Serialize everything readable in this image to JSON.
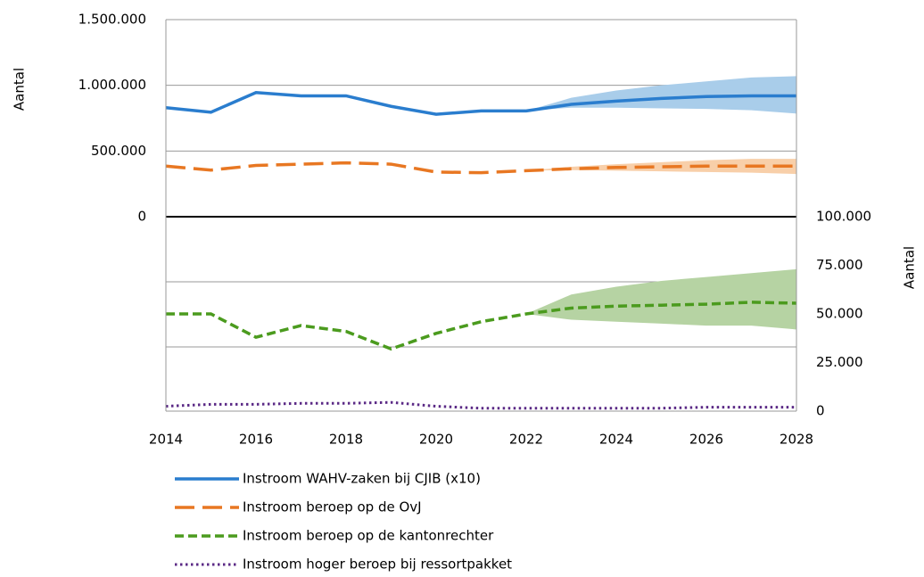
{
  "chart_data": [
    {
      "type": "line",
      "y_label": "Aantal",
      "x": [
        2014,
        2015,
        2016,
        2017,
        2018,
        2019,
        2020,
        2021,
        2022,
        2023,
        2024,
        2025,
        2026,
        2027,
        2028
      ],
      "xlim": [
        2014,
        2028
      ],
      "ylim": [
        0,
        1500000
      ],
      "yticks": [
        0,
        {
          "value": 500000,
          "label": "500.000"
        },
        {
          "value": 1000000,
          "label": "1.000.000"
        },
        {
          "value": 1500000,
          "label": "1.500.000"
        }
      ],
      "grid": true,
      "series": [
        {
          "name": "Instroom WAHV-zaken bij CJIB (x10)",
          "color": "#2a7dce",
          "dash": "solid",
          "band_color": "#a9cdea",
          "values": [
            830000,
            795000,
            945000,
            920000,
            920000,
            840000,
            780000,
            805000,
            805000,
            855000,
            880000,
            900000,
            915000,
            920000,
            920000
          ],
          "band": {
            "lower": [
              null,
              null,
              null,
              null,
              null,
              null,
              null,
              null,
              805000,
              830000,
              830000,
              825000,
              820000,
              810000,
              785000
            ],
            "upper": [
              null,
              null,
              null,
              null,
              null,
              null,
              null,
              null,
              805000,
              905000,
              960000,
              1000000,
              1030000,
              1060000,
              1070000
            ]
          }
        },
        {
          "name": "Instroom beroep op de OvJ",
          "color": "#e87722",
          "dash": "long-dash",
          "band_color": "#f8cfa9",
          "values": [
            385000,
            355000,
            390000,
            400000,
            410000,
            400000,
            340000,
            335000,
            350000,
            365000,
            375000,
            380000,
            385000,
            385000,
            385000
          ],
          "band": {
            "lower": [
              null,
              null,
              null,
              null,
              null,
              null,
              null,
              null,
              350000,
              355000,
              350000,
              345000,
              340000,
              335000,
              325000
            ],
            "upper": [
              null,
              null,
              null,
              null,
              null,
              null,
              null,
              null,
              350000,
              380000,
              400000,
              415000,
              430000,
              440000,
              440000
            ]
          }
        }
      ]
    },
    {
      "type": "line",
      "y_label": "Aantal",
      "axis_side": "right",
      "x": [
        2014,
        2015,
        2016,
        2017,
        2018,
        2019,
        2020,
        2021,
        2022,
        2023,
        2024,
        2025,
        2026,
        2027,
        2028
      ],
      "xlim": [
        2014,
        2028
      ],
      "xticks": [
        2014,
        2016,
        2018,
        2020,
        2022,
        2024,
        2026,
        2028
      ],
      "ylim": [
        0,
        100000
      ],
      "yticks": [
        0,
        {
          "value": 25000,
          "label": "25.000"
        },
        {
          "value": 50000,
          "label": "50.000"
        },
        {
          "value": 75000,
          "label": "75.000"
        },
        {
          "value": 100000,
          "label": "100.000"
        }
      ],
      "series": [
        {
          "name": "Instroom beroep op de kantonrechter",
          "color": "#4b9b1e",
          "dash": "dash",
          "band_color": "#b6d3a3",
          "values": [
            50000,
            50000,
            38000,
            44000,
            41000,
            32000,
            40000,
            46000,
            50000,
            53000,
            54000,
            54500,
            55000,
            56000,
            55500
          ],
          "band": {
            "lower": [
              null,
              null,
              null,
              null,
              null,
              null,
              null,
              null,
              50000,
              47000,
              46000,
              45000,
              44000,
              44000,
              42000
            ],
            "upper": [
              null,
              null,
              null,
              null,
              null,
              null,
              null,
              null,
              50000,
              60000,
              64000,
              67000,
              69000,
              71000,
              73000
            ]
          }
        },
        {
          "name": "Instroom hoger beroep bij ressortpakket",
          "color": "#5b2a86",
          "dash": "dot",
          "values": [
            2500,
            3500,
            3500,
            4000,
            4000,
            4500,
            2500,
            1500,
            1500,
            1500,
            1500,
            1500,
            2000,
            2000,
            2000
          ]
        }
      ]
    }
  ]
}
